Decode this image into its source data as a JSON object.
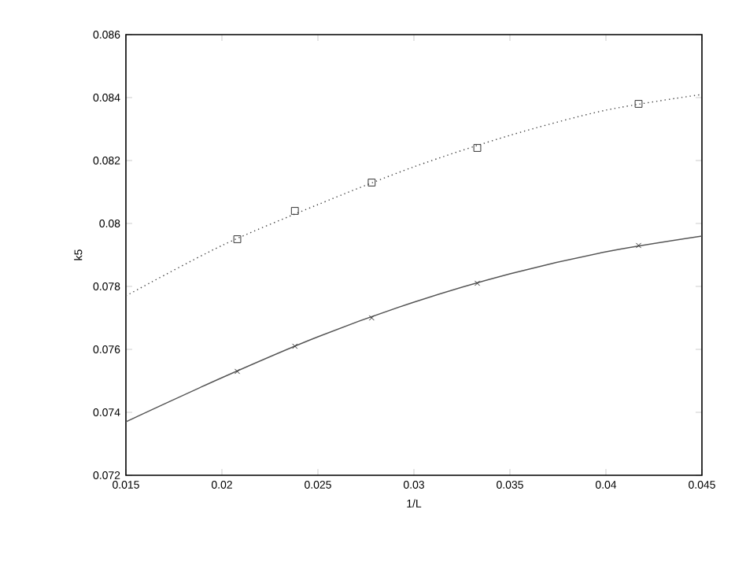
{
  "chart_data": {
    "type": "line",
    "xlabel": "1/L",
    "ylabel": "k5",
    "xlim": [
      0.015,
      0.045
    ],
    "ylim": [
      0.072,
      0.086
    ],
    "xticks": [
      0.015,
      0.02,
      0.025,
      0.03,
      0.035,
      0.04,
      0.045
    ],
    "yticks": [
      0.072,
      0.074,
      0.076,
      0.078,
      0.08,
      0.082,
      0.084,
      0.086
    ],
    "grid": false,
    "series": [
      {
        "type": "scatter",
        "marker": "square",
        "color": "#333333",
        "x": [
          0.0208,
          0.0238,
          0.0278,
          0.0333,
          0.0417
        ],
        "values": [
          0.0795,
          0.0804,
          0.0813,
          0.0824,
          0.0838
        ]
      },
      {
        "marker": "none",
        "line_style": "dotted",
        "color": "#444444",
        "x": [
          0.015,
          0.02,
          0.025,
          0.03,
          0.035,
          0.04,
          0.045
        ],
        "values": [
          0.0777,
          0.0793,
          0.0806,
          0.0818,
          0.0828,
          0.0836,
          0.0841
        ]
      },
      {
        "type": "scatter",
        "marker": "cross",
        "color": "#333333",
        "x": [
          0.0208,
          0.0238,
          0.0278,
          0.0333,
          0.0417
        ],
        "values": [
          0.0753,
          0.0761,
          0.077,
          0.0781,
          0.0793
        ]
      },
      {
        "marker": "none",
        "line_style": "solid",
        "color": "#555555",
        "x": [
          0.015,
          0.02,
          0.025,
          0.03,
          0.035,
          0.04,
          0.045
        ],
        "values": [
          0.0737,
          0.0751,
          0.0764,
          0.0775,
          0.0784,
          0.0791,
          0.0796
        ]
      }
    ]
  }
}
